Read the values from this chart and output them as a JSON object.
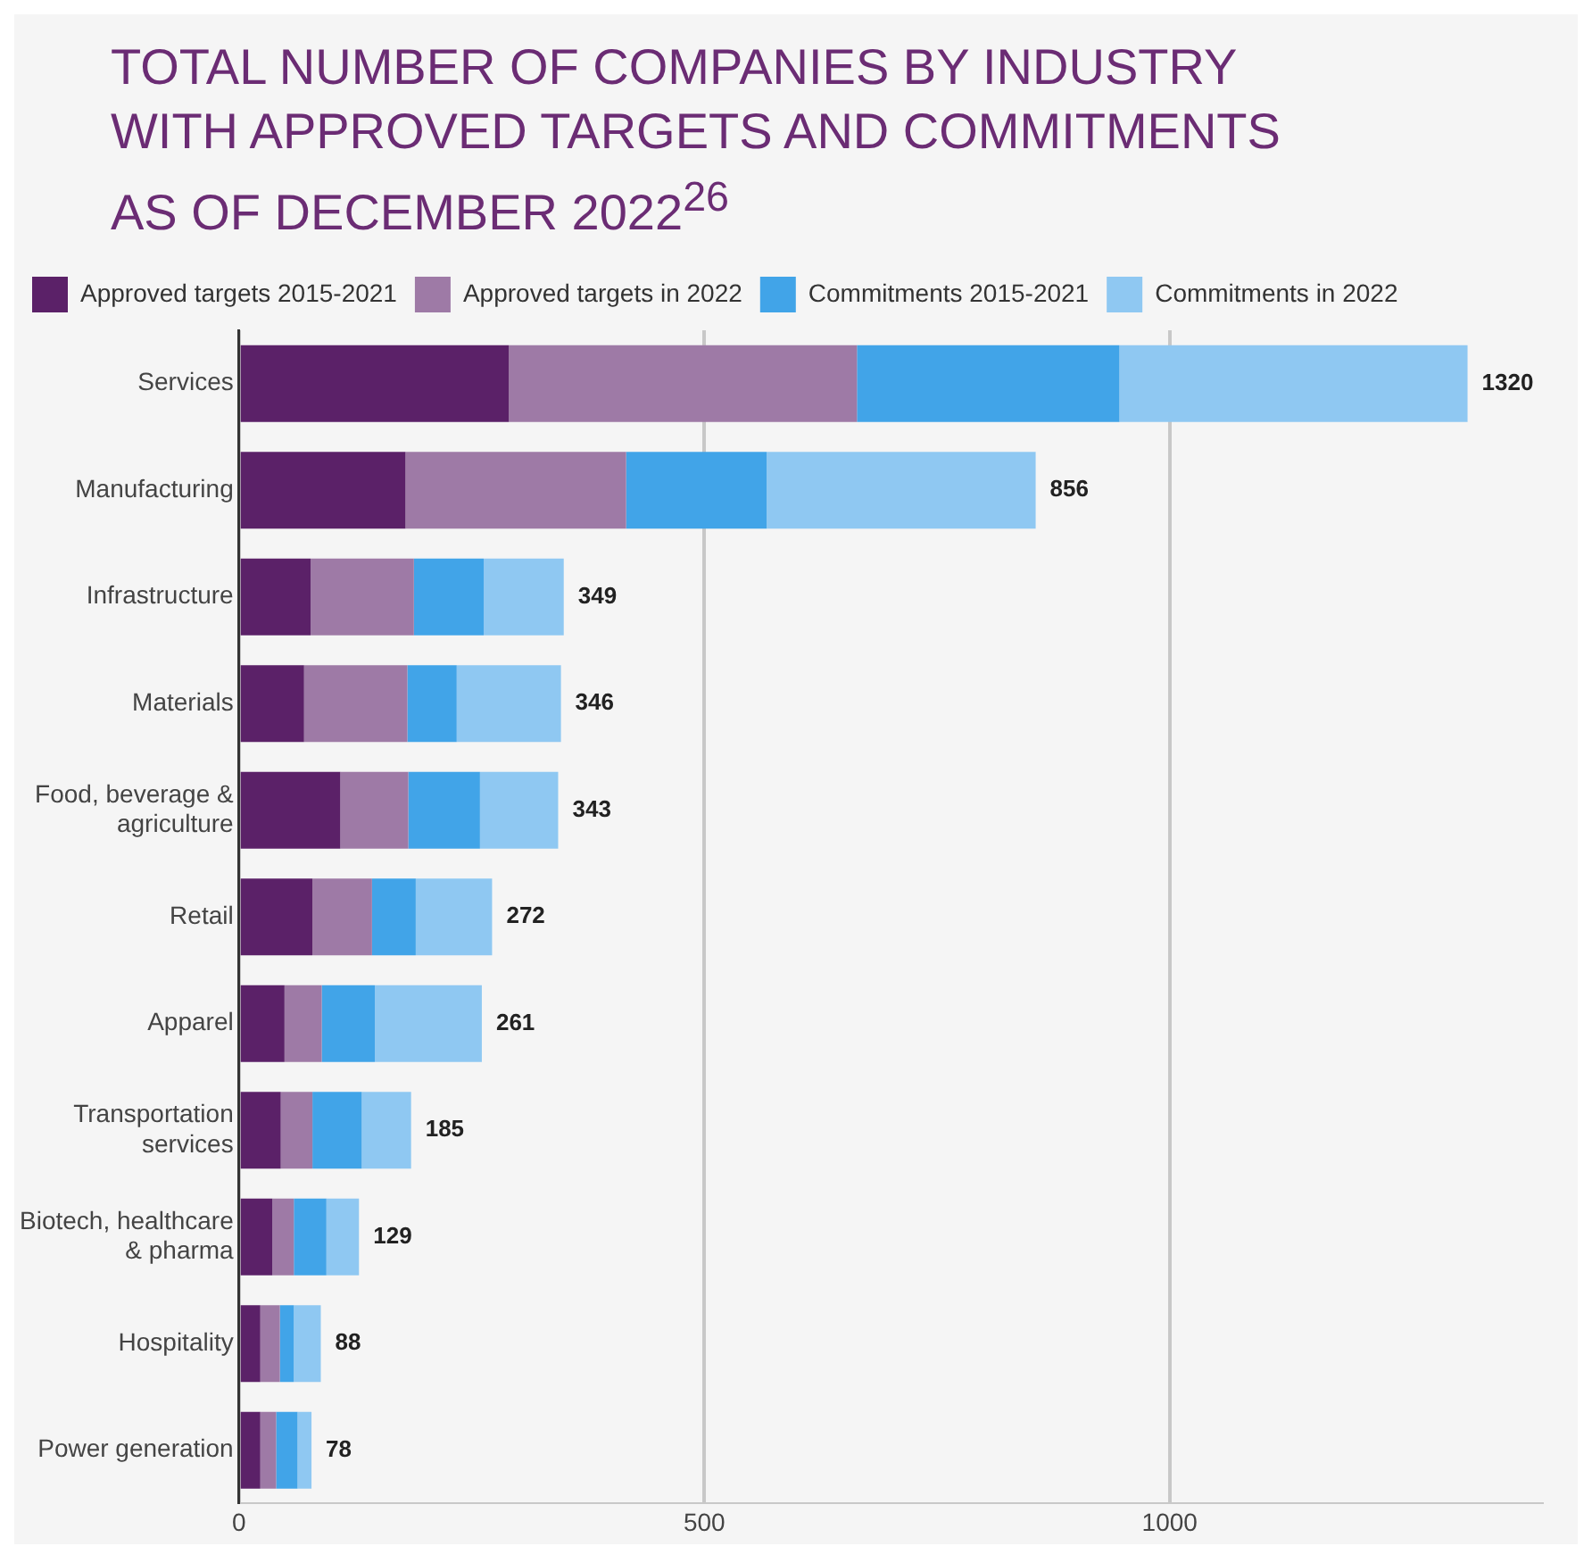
{
  "chart_data": {
    "type": "bar",
    "orientation": "horizontal",
    "stacked": true,
    "title": "TOTAL NUMBER OF COMPANIES BY INDUSTRY WITH APPROVED TARGETS AND COMMITMENTS AS OF DECEMBER 2022$^{26}$",
    "categories": [
      "Services",
      "Manufacturing",
      "Infrastructure",
      "Materials",
      "Food, beverage & agriculture",
      "Retail",
      "Apparel",
      "Transportation services",
      "Biotech, healthcare & pharma",
      "Hospitality",
      "Power generation"
    ],
    "series": [
      {
        "name": "Approved targets 2015-2021",
        "color": "#5b2168",
        "values": [
          290,
          179,
          77,
          70,
          109,
          79,
          49,
          45,
          36,
          23,
          23
        ]
      },
      {
        "name": "Approved targets in 2022",
        "color": "#9e7aa6",
        "values": [
          374,
          237,
          111,
          111,
          73,
          64,
          40,
          34,
          23,
          21,
          17
        ]
      },
      {
        "name": "Commitments 2015-2021",
        "color": "#41a4e8",
        "values": [
          282,
          151,
          75,
          53,
          77,
          47,
          57,
          53,
          35,
          15,
          23
        ]
      },
      {
        "name": "Commitments in 2022",
        "color": "#8fc8f2",
        "values": [
          374,
          289,
          86,
          112,
          84,
          82,
          115,
          53,
          35,
          29,
          15
        ]
      }
    ],
    "totals": [
      "1320",
      "856",
      "349",
      "346",
      "343",
      "272",
      "261",
      "185",
      "129",
      "88",
      "78"
    ],
    "xlim": [
      0,
      1400
    ],
    "xticks": [
      0,
      500,
      1000
    ],
    "grid": "x",
    "legend": "top"
  }
}
